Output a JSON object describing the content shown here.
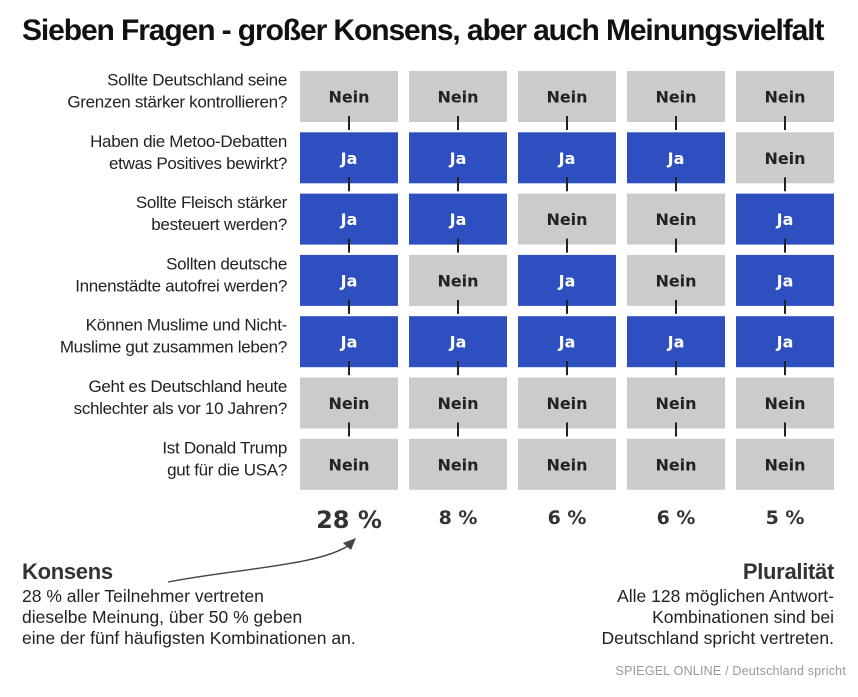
{
  "title": "Sieben Fragen - großer Konsens, aber auch Meinungsvielfalt",
  "colors": {
    "ja": "#2e4fbf",
    "nein": "#cbcbcb",
    "ja_text": "#ffffff",
    "nein_text": "#222222"
  },
  "chart_data": {
    "type": "table",
    "questions": [
      [
        "Sollte Deutschland seine",
        "Grenzen stärker kontrollieren?"
      ],
      [
        "Haben die Metoo-Debatten",
        "etwas Positives bewirkt?"
      ],
      [
        "Sollte Fleisch stärker",
        "besteuert werden?"
      ],
      [
        "Sollten deutsche",
        "Innenstädte autofrei werden?"
      ],
      [
        "Können Muslime und Nicht-",
        "Muslime gut zusammen leben?"
      ],
      [
        "Geht es Deutschland heute",
        "schlechter als vor 10 Jahren?"
      ],
      [
        "Ist Donald Trump",
        "gut für die USA?"
      ]
    ],
    "combinations": [
      {
        "share": "28 %",
        "answers": [
          "Nein",
          "Ja",
          "Ja",
          "Ja",
          "Ja",
          "Nein",
          "Nein"
        ]
      },
      {
        "share": "8 %",
        "answers": [
          "Nein",
          "Ja",
          "Ja",
          "Nein",
          "Ja",
          "Nein",
          "Nein"
        ]
      },
      {
        "share": "6 %",
        "answers": [
          "Nein",
          "Ja",
          "Nein",
          "Ja",
          "Ja",
          "Nein",
          "Nein"
        ]
      },
      {
        "share": "6 %",
        "answers": [
          "Nein",
          "Ja",
          "Nein",
          "Nein",
          "Ja",
          "Nein",
          "Nein"
        ]
      },
      {
        "share": "5 %",
        "answers": [
          "Nein",
          "Nein",
          "Ja",
          "Ja",
          "Ja",
          "Nein",
          "Nein"
        ]
      }
    ]
  },
  "annotations": {
    "consensus_head": "Konsens",
    "consensus_lines": [
      "28 % aller Teilnehmer vertreten",
      "dieselbe Meinung, über 50 % geben",
      "eine der fünf häufigsten Kombinationen an."
    ],
    "plurality_head": "Pluralität",
    "plurality_lines": [
      "Alle 128 möglichen Antwort-",
      "Kombinationen sind bei",
      "Deutschland spricht vertreten."
    ]
  },
  "source": "SPIEGEL ONLINE / Deutschland spricht"
}
